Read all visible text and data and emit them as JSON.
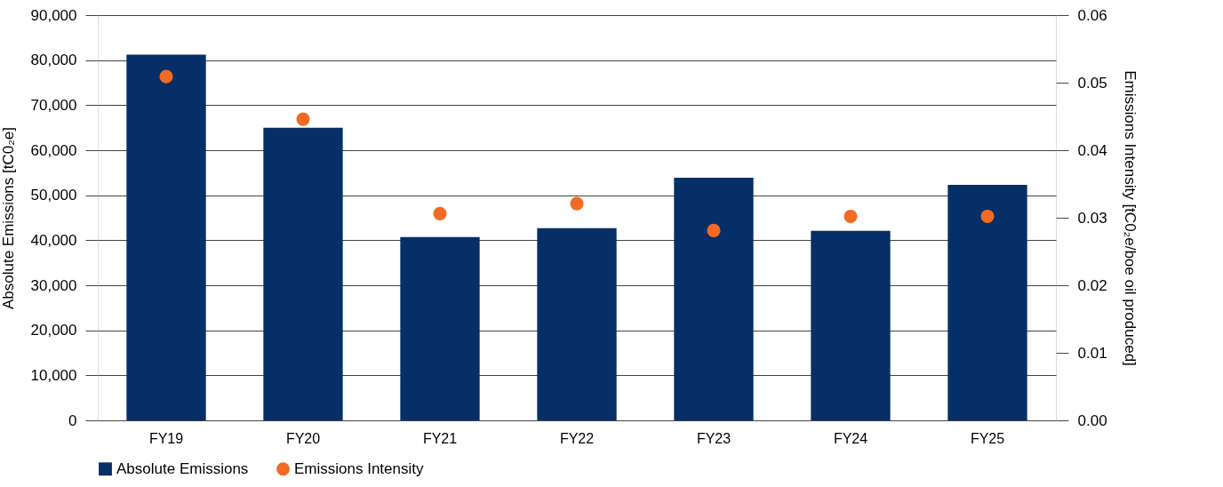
{
  "chart_data": {
    "type": "bar",
    "categories": [
      "FY19",
      "FY20",
      "FY21",
      "FY22",
      "FY23",
      "FY24",
      "FY25"
    ],
    "series": [
      {
        "name": "Absolute Emissions",
        "color": "#052f66",
        "values": [
          81200,
          65000,
          40700,
          42700,
          53900,
          42100,
          52300
        ]
      },
      {
        "name": "Emissions Intensity",
        "type": "scatter",
        "axis": "y2",
        "color": "#f26a24",
        "values": [
          0.0509,
          0.0446,
          0.0306,
          0.0321,
          0.0281,
          0.0302,
          0.0302
        ]
      }
    ],
    "ylabel": "Absolute Emissions [tC0₂e]",
    "y2label": "Emissions Intensity [tC0₂e/boe oil produced]",
    "ylim": [
      0,
      90000
    ],
    "yticks": [
      {
        "value": 0,
        "label": "0"
      },
      {
        "value": 10000,
        "label": "10,000"
      },
      {
        "value": 20000,
        "label": "20,000"
      },
      {
        "value": 30000,
        "label": "30,000"
      },
      {
        "value": 40000,
        "label": "40,000"
      },
      {
        "value": 50000,
        "label": "50,000"
      },
      {
        "value": 60000,
        "label": "60,000"
      },
      {
        "value": 70000,
        "label": "70,000"
      },
      {
        "value": 80000,
        "label": "80,000"
      },
      {
        "value": 90000,
        "label": "90,000"
      }
    ],
    "y2lim": [
      0,
      0.06
    ],
    "y2ticks": [
      {
        "value": 0,
        "label": "0.00"
      },
      {
        "value": 0.01,
        "label": "0.01"
      },
      {
        "value": 0.02,
        "label": "0.02"
      },
      {
        "value": 0.03,
        "label": "0.03"
      },
      {
        "value": 0.04,
        "label": "0.04"
      },
      {
        "value": 0.05,
        "label": "0.05"
      },
      {
        "value": 0.06,
        "label": "0.06"
      }
    ],
    "grid": "y",
    "legend": "bottom",
    "marker": "circle"
  }
}
